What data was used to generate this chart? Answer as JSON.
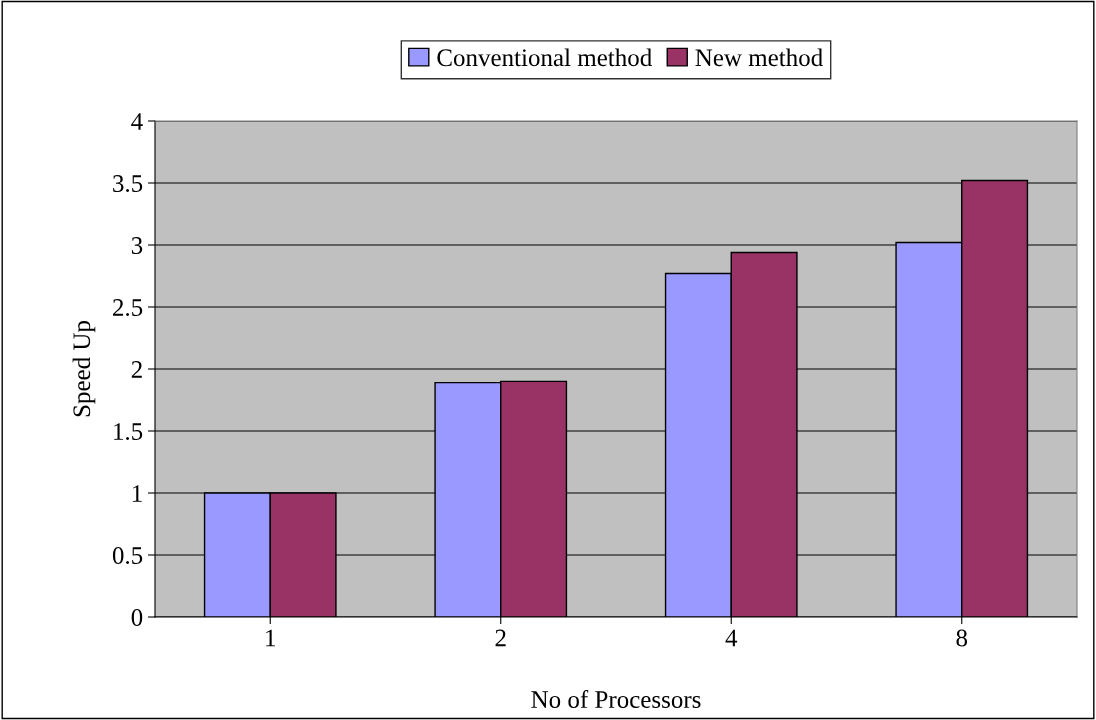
{
  "chart_data": {
    "type": "bar",
    "xlabel": "No of Processors",
    "ylabel": "Speed Up",
    "categories": [
      "1",
      "2",
      "4",
      "8"
    ],
    "series": [
      {
        "name": "Conventional method",
        "color": "#9999ff",
        "values": [
          1.0,
          1.89,
          2.77,
          3.02
        ]
      },
      {
        "name": "New method",
        "color": "#993366",
        "values": [
          1.0,
          1.9,
          2.94,
          3.52
        ]
      }
    ],
    "ylim": [
      0,
      4
    ],
    "yticks": [
      0,
      0.5,
      1,
      1.5,
      2,
      2.5,
      3,
      3.5,
      4
    ],
    "grid": "y",
    "legend": "top"
  }
}
